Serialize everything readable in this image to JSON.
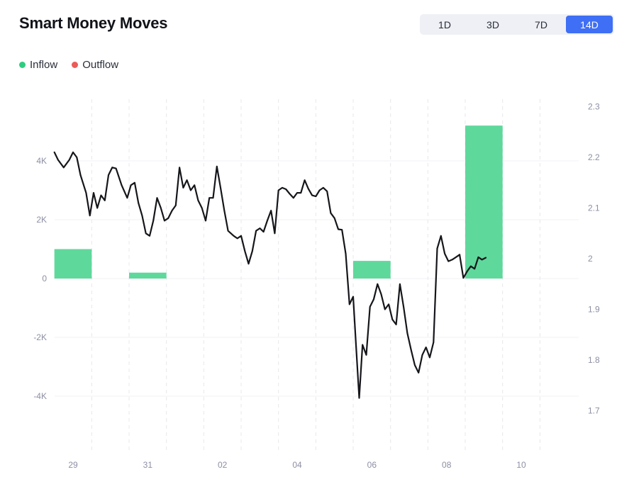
{
  "header": {
    "title": "Smart Money Moves",
    "ranges": [
      "1D",
      "3D",
      "7D",
      "14D"
    ],
    "active_range": "14D"
  },
  "legend": [
    {
      "label": "Inflow",
      "color": "#2ecc80"
    },
    {
      "label": "Outflow",
      "color": "#ec5b56"
    }
  ],
  "chart_data": {
    "type": "bar",
    "title": "Smart Money Moves",
    "x_ticks": [
      "29",
      "31",
      "02",
      "04",
      "06",
      "08",
      "10"
    ],
    "y_left": {
      "ticks": [
        "4K",
        "2K",
        "0",
        "-2K",
        "-4K"
      ],
      "values": [
        4000,
        2000,
        0,
        -2000,
        -4000
      ],
      "range": [
        -6000,
        6000
      ]
    },
    "y_right": {
      "ticks": [
        "2.3",
        "2.2",
        "2.1",
        "2",
        "1.9",
        "1.8",
        "1.7"
      ],
      "values": [
        2.3,
        2.2,
        2.1,
        2.0,
        1.9,
        1.8,
        1.7
      ],
      "range": [
        1.62,
        2.32
      ]
    },
    "grid": true,
    "legend_position": "top-left",
    "bar_colors": {
      "inflow": "#5fd89c",
      "outflow": "#ec5b56"
    },
    "line_color": "#15161a",
    "series": [
      {
        "name": "Inflow",
        "axis": "left",
        "bars": [
          {
            "x": 29.0,
            "value": 1000
          },
          {
            "x": 31.0,
            "value": 200
          },
          {
            "x": 37.0,
            "value": 600
          },
          {
            "x": 40.0,
            "value": 5200
          }
        ]
      },
      {
        "name": "Outflow",
        "axis": "left",
        "bars": []
      },
      {
        "axis": "right",
        "type": "line",
        "points": [
          [
            28.5,
            2.21
          ],
          [
            28.6,
            2.195
          ],
          [
            28.75,
            2.18
          ],
          [
            28.9,
            2.195
          ],
          [
            29.0,
            2.21
          ],
          [
            29.1,
            2.2
          ],
          [
            29.2,
            2.165
          ],
          [
            29.35,
            2.13
          ],
          [
            29.45,
            2.085
          ],
          [
            29.55,
            2.13
          ],
          [
            29.65,
            2.1
          ],
          [
            29.75,
            2.125
          ],
          [
            29.85,
            2.115
          ],
          [
            29.95,
            2.165
          ],
          [
            30.05,
            2.18
          ],
          [
            30.15,
            2.178
          ],
          [
            30.3,
            2.145
          ],
          [
            30.45,
            2.12
          ],
          [
            30.55,
            2.145
          ],
          [
            30.65,
            2.15
          ],
          [
            30.75,
            2.11
          ],
          [
            30.85,
            2.085
          ],
          [
            30.95,
            2.05
          ],
          [
            31.05,
            2.045
          ],
          [
            31.15,
            2.075
          ],
          [
            31.25,
            2.12
          ],
          [
            31.35,
            2.1
          ],
          [
            31.45,
            2.075
          ],
          [
            31.55,
            2.08
          ],
          [
            31.65,
            2.095
          ],
          [
            31.75,
            2.105
          ],
          [
            31.85,
            2.18
          ],
          [
            31.95,
            2.14
          ],
          [
            32.05,
            2.155
          ],
          [
            32.15,
            2.135
          ],
          [
            32.25,
            2.145
          ],
          [
            32.35,
            2.115
          ],
          [
            32.45,
            2.1
          ],
          [
            32.55,
            2.075
          ],
          [
            32.65,
            2.12
          ],
          [
            32.75,
            2.12
          ],
          [
            32.85,
            2.182
          ],
          [
            32.95,
            2.14
          ],
          [
            33.05,
            2.095
          ],
          [
            33.15,
            2.055
          ],
          [
            33.3,
            2.045
          ],
          [
            33.4,
            2.04
          ],
          [
            33.5,
            2.045
          ],
          [
            33.6,
            2.015
          ],
          [
            33.7,
            1.99
          ],
          [
            33.8,
            2.015
          ],
          [
            33.9,
            2.055
          ],
          [
            34.0,
            2.06
          ],
          [
            34.1,
            2.053
          ],
          [
            34.2,
            2.075
          ],
          [
            34.3,
            2.095
          ],
          [
            34.4,
            2.05
          ],
          [
            34.5,
            2.135
          ],
          [
            34.6,
            2.14
          ],
          [
            34.7,
            2.137
          ],
          [
            34.8,
            2.128
          ],
          [
            34.9,
            2.12
          ],
          [
            35.0,
            2.13
          ],
          [
            35.1,
            2.13
          ],
          [
            35.2,
            2.155
          ],
          [
            35.3,
            2.138
          ],
          [
            35.4,
            2.125
          ],
          [
            35.5,
            2.123
          ],
          [
            35.6,
            2.135
          ],
          [
            35.7,
            2.14
          ],
          [
            35.8,
            2.133
          ],
          [
            35.9,
            2.09
          ],
          [
            36.0,
            2.08
          ],
          [
            36.1,
            2.058
          ],
          [
            36.2,
            2.057
          ],
          [
            36.3,
            2.01
          ],
          [
            36.4,
            1.91
          ],
          [
            36.5,
            1.925
          ],
          [
            36.58,
            1.825
          ],
          [
            36.66,
            1.725
          ],
          [
            36.75,
            1.83
          ],
          [
            36.85,
            1.81
          ],
          [
            36.95,
            1.905
          ],
          [
            37.05,
            1.92
          ],
          [
            37.15,
            1.95
          ],
          [
            37.25,
            1.93
          ],
          [
            37.35,
            1.9
          ],
          [
            37.45,
            1.91
          ],
          [
            37.55,
            1.88
          ],
          [
            37.65,
            1.87
          ],
          [
            37.75,
            1.95
          ],
          [
            37.85,
            1.905
          ],
          [
            37.95,
            1.853
          ],
          [
            38.05,
            1.82
          ],
          [
            38.15,
            1.79
          ],
          [
            38.25,
            1.775
          ],
          [
            38.35,
            1.81
          ],
          [
            38.45,
            1.825
          ],
          [
            38.55,
            1.805
          ],
          [
            38.65,
            1.835
          ],
          [
            38.75,
            2.02
          ],
          [
            38.85,
            2.045
          ],
          [
            38.95,
            2.01
          ],
          [
            39.05,
            1.995
          ],
          [
            39.15,
            1.998
          ],
          [
            39.25,
            2.003
          ],
          [
            39.35,
            2.008
          ],
          [
            39.45,
            1.962
          ],
          [
            39.55,
            1.975
          ],
          [
            39.65,
            1.985
          ],
          [
            39.75,
            1.98
          ],
          [
            39.85,
            2.003
          ],
          [
            39.95,
            1.998
          ],
          [
            40.05,
            2.002
          ]
        ]
      }
    ]
  }
}
